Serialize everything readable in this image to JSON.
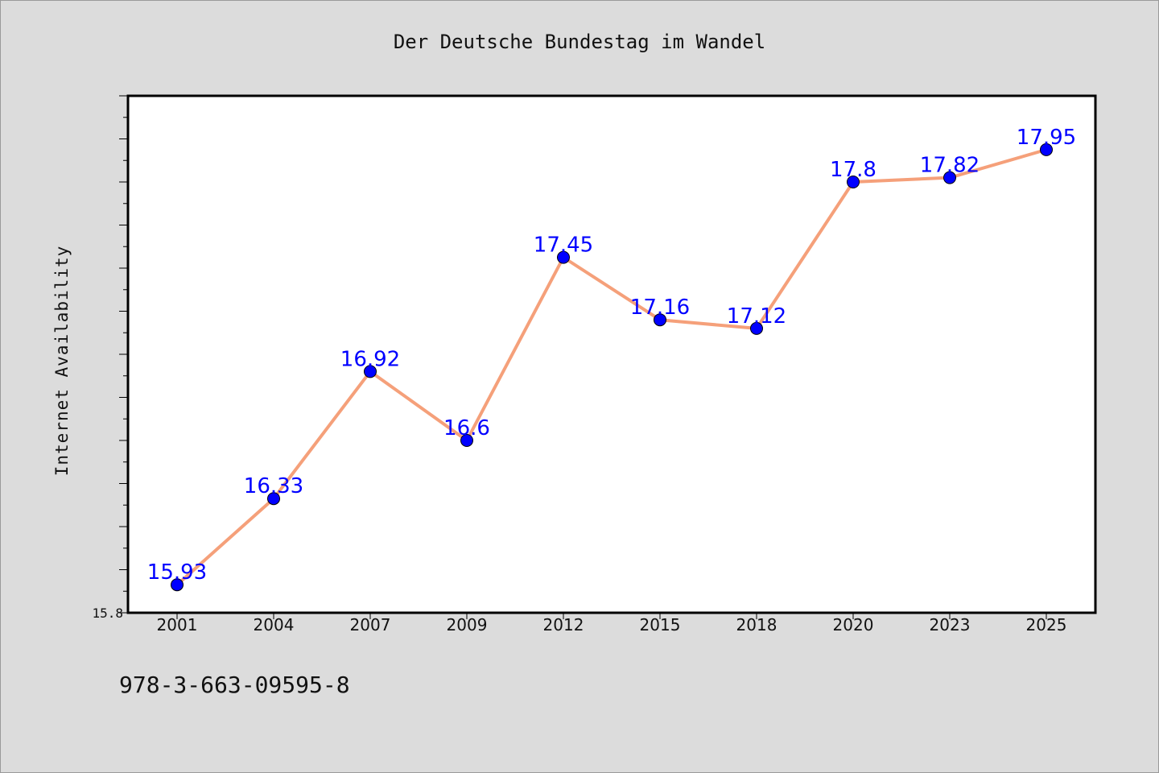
{
  "chart_data": {
    "type": "line",
    "title": "Der Deutsche Bundestag im Wandel",
    "xlabel": "",
    "ylabel": "Internet Availability",
    "categories": [
      "2001",
      "2004",
      "2007",
      "2009",
      "2012",
      "2015",
      "2018",
      "2020",
      "2023",
      "2025"
    ],
    "series": [
      {
        "values": [
          15.93,
          16.33,
          16.92,
          16.6,
          17.45,
          17.16,
          17.12,
          17.8,
          17.82,
          17.95
        ],
        "data_labels": [
          "15.93",
          "16.33",
          "16.92",
          "16.6",
          "17.45",
          "17.16",
          "17.12",
          "17.8",
          "17.82",
          "17.95"
        ],
        "line_color": "#f5a07a",
        "marker_color": "#0000ff"
      }
    ],
    "ylim": [
      15.8,
      18.2
    ],
    "yticks_labeled": [
      "15.8"
    ],
    "grid": false,
    "legend": "none"
  },
  "footer": {
    "code": "978-3-663-09595-8"
  }
}
